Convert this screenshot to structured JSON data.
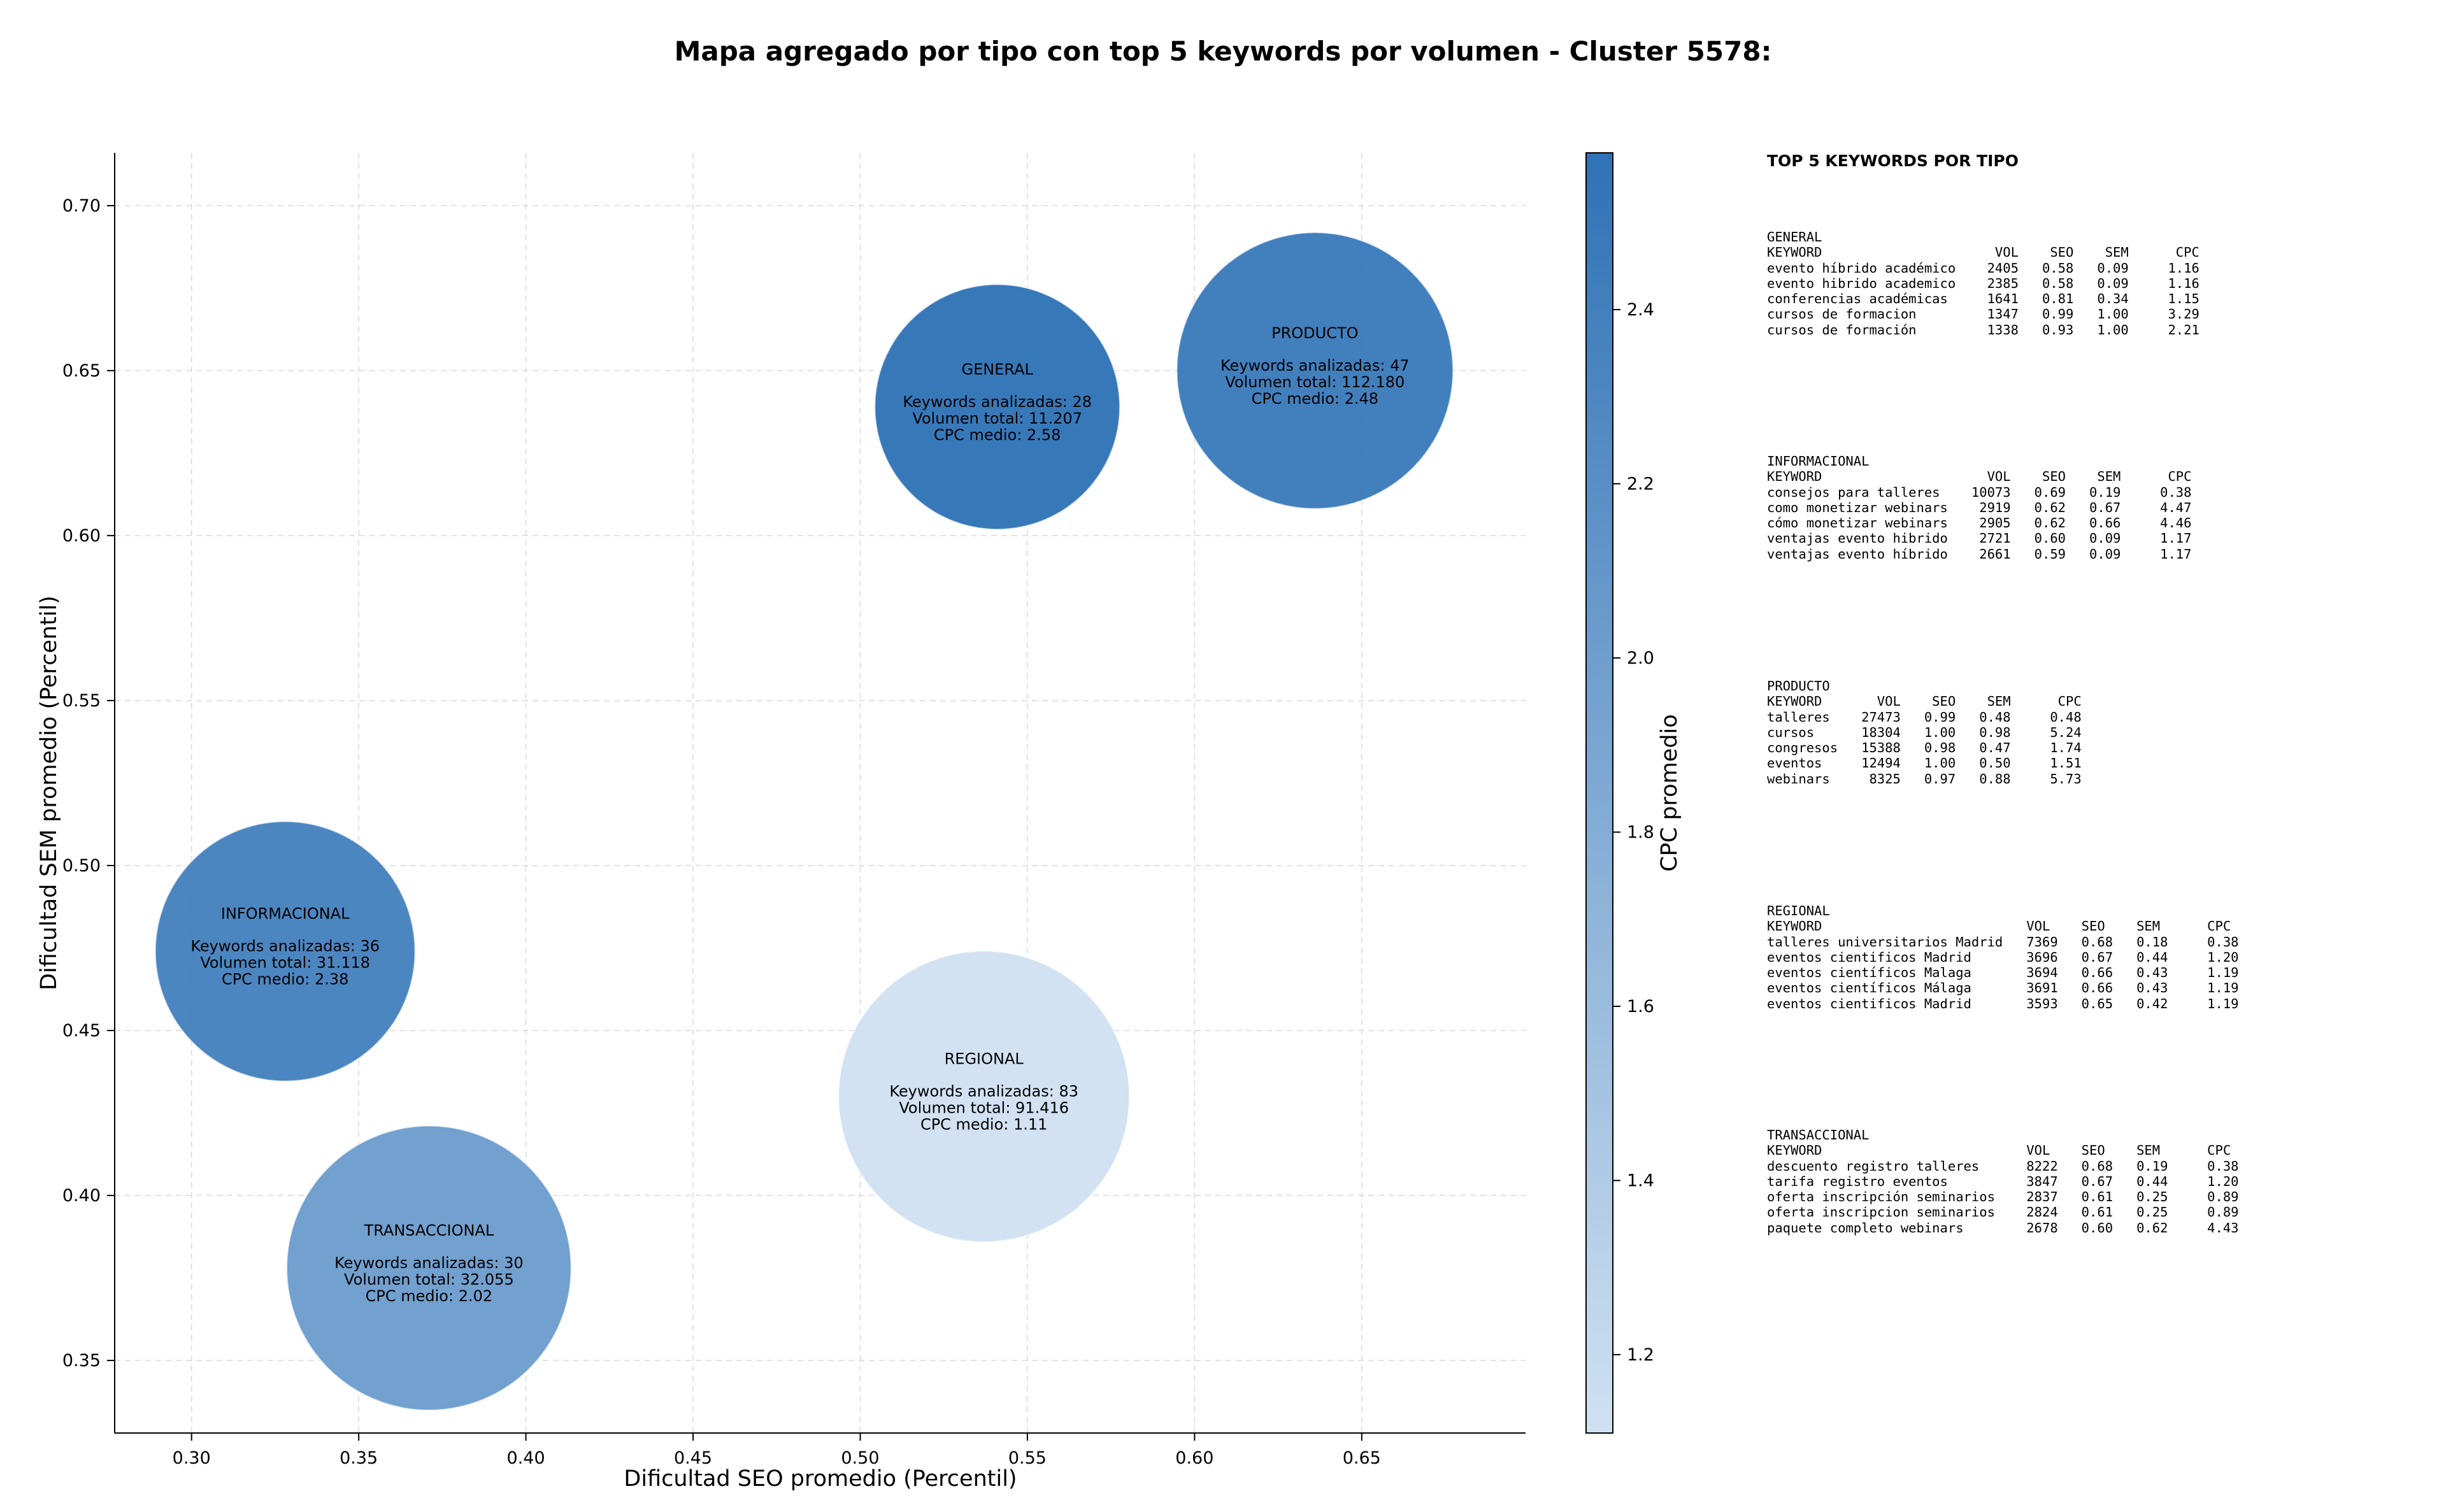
{
  "chart_data": {
    "type": "scatter",
    "title": "Mapa agregado por tipo con top 5 keywords por volumen - Cluster 5578:",
    "xlabel": "Dificultad SEO promedio (Percentil)",
    "ylabel": "Dificultad SEM promedio (Percentil)",
    "xlim": [
      0.277,
      0.699
    ],
    "ylim": [
      0.328,
      0.716
    ],
    "xticks": [
      "0.30",
      "0.35",
      "0.40",
      "0.45",
      "0.50",
      "0.55",
      "0.60",
      "0.65"
    ],
    "yticks": [
      "0.35",
      "0.40",
      "0.45",
      "0.50",
      "0.55",
      "0.60",
      "0.65",
      "0.70"
    ],
    "grid": true,
    "colorbar": {
      "label": "CPC promedio",
      "min": 1.11,
      "max": 2.58,
      "ticks": [
        "1.2",
        "1.4",
        "1.6",
        "1.8",
        "2.0",
        "2.2",
        "2.4"
      ],
      "color_low": "#d0e1f2",
      "color_high": "#2f72b6"
    },
    "points": [
      {
        "name": "GENERAL",
        "seo": 0.541,
        "sem": 0.639,
        "keywords": 28,
        "volume": 11207,
        "cpc": 2.58,
        "size_rel": 0.745,
        "lines": [
          "Keywords analizadas: 28",
          "Volumen total: 11.207",
          "CPC medio: 2.58"
        ]
      },
      {
        "name": "PRODUCTO",
        "seo": 0.636,
        "sem": 0.65,
        "keywords": 47,
        "volume": 112180,
        "cpc": 2.48,
        "size_rel": 0.84,
        "lines": [
          "Keywords analizadas: 47",
          "Volumen total: 112.180",
          "CPC medio: 2.48"
        ]
      },
      {
        "name": "INFORMACIONAL",
        "seo": 0.328,
        "sem": 0.474,
        "keywords": 36,
        "volume": 31118,
        "cpc": 2.38,
        "size_rel": 0.79,
        "lines": [
          "Keywords analizadas: 36",
          "Volumen total: 31.118",
          "CPC medio: 2.38"
        ]
      },
      {
        "name": "REGIONAL",
        "seo": 0.537,
        "sem": 0.43,
        "keywords": 83,
        "volume": 91416,
        "cpc": 1.11,
        "size_rel": 0.885,
        "lines": [
          "Keywords analizadas: 83",
          "Volumen total: 91.416",
          "CPC medio: 1.11"
        ]
      },
      {
        "name": "TRANSACCIONAL",
        "seo": 0.371,
        "sem": 0.378,
        "keywords": 30,
        "volume": 32055,
        "cpc": 2.02,
        "size_rel": 0.865,
        "lines": [
          "Keywords analizadas: 30",
          "Volumen total: 32.055",
          "CPC medio: 2.02"
        ]
      }
    ]
  },
  "panel": {
    "heading": "TOP 5 KEYWORDS POR TIPO",
    "blocks": [
      {
        "title": "GENERAL",
        "lines": [
          "KEYWORD                      VOL    SEO    SEM      CPC",
          "evento híbrido académico    2405   0.58   0.09     1.16",
          "evento hibrido academico    2385   0.58   0.09     1.16",
          "conferencias académicas     1641   0.81   0.34     1.15",
          "cursos de formacion         1347   0.99   1.00     3.29",
          "cursos de formación         1338   0.93   1.00     2.21"
        ]
      },
      {
        "title": "INFORMACIONAL",
        "lines": [
          "KEYWORD                     VOL    SEO    SEM      CPC",
          "consejos para talleres    10073   0.69   0.19     0.38",
          "como monetizar webinars    2919   0.62   0.67     4.47",
          "cómo monetizar webinars    2905   0.62   0.66     4.46",
          "ventajas evento hibrido    2721   0.60   0.09     1.17",
          "ventajas evento híbrido    2661   0.59   0.09     1.17"
        ]
      },
      {
        "title": "PRODUCTO",
        "lines": [
          "KEYWORD       VOL    SEO    SEM      CPC",
          "talleres    27473   0.99   0.48     0.48",
          "cursos      18304   1.00   0.98     5.24",
          "congresos   15388   0.98   0.47     1.74",
          "eventos     12494   1.00   0.50     1.51",
          "webinars     8325   0.97   0.88     5.73"
        ]
      },
      {
        "title": "REGIONAL",
        "lines": [
          "KEYWORD                          VOL    SEO    SEM      CPC",
          "talleres universitarios Madrid   7369   0.68   0.18     0.38",
          "eventos cientificos Madrid       3696   0.67   0.44     1.20",
          "eventos científicos Malaga       3694   0.66   0.43     1.19",
          "eventos científicos Málaga       3691   0.66   0.43     1.19",
          "eventos cientificos Madrid       3593   0.65   0.42     1.19"
        ]
      },
      {
        "title": "TRANSACCIONAL",
        "lines": [
          "KEYWORD                          VOL    SEO    SEM      CPC",
          "descuento registro talleres      8222   0.68   0.19     0.38",
          "tarifa registro eventos          3847   0.67   0.44     1.20",
          "oferta inscripción seminarios    2837   0.61   0.25     0.89",
          "oferta inscripcion seminarios    2824   0.61   0.25     0.89",
          "paquete completo webinars        2678   0.60   0.62     4.43"
        ]
      }
    ]
  }
}
